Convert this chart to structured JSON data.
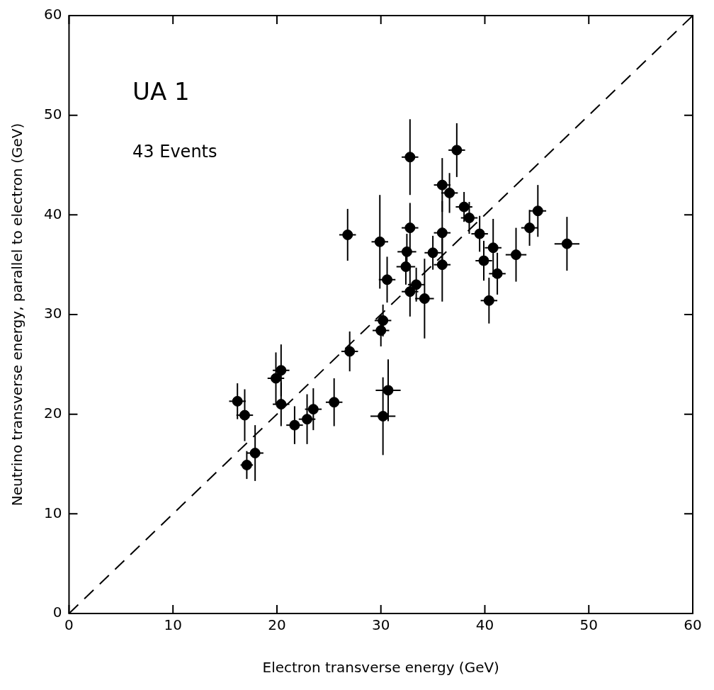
{
  "chart_data": {
    "type": "scatter",
    "xlabel": "Electron transverse energy (GeV)",
    "ylabel": "Neutrino transverse energy, parallel to electron (GeV)",
    "annotations": [
      "UA 1",
      "43 Events"
    ],
    "xlim": [
      0,
      60
    ],
    "xticks": [
      0,
      10,
      20,
      30,
      40,
      50,
      60
    ],
    "ylim": [
      0,
      60
    ],
    "yticks": [
      0,
      10,
      20,
      30,
      40,
      50,
      60
    ],
    "grid": false,
    "legend": false,
    "series": [
      {
        "type": "scatter",
        "color": "#000000",
        "marker": "circle",
        "x": [
          16.2,
          16.9,
          17.1,
          17.9,
          19.9,
          20.4,
          20.4,
          21.7,
          22.9,
          23.5,
          25.5,
          27.0,
          30.0,
          30.2,
          30.2,
          30.7,
          26.8,
          29.9,
          30.6,
          32.8,
          32.8,
          32.5,
          32.4,
          33.4,
          32.8,
          34.2,
          35.0,
          35.9,
          35.9,
          35.9,
          36.6,
          37.3,
          38.0,
          38.5,
          39.5,
          40.8,
          39.9,
          41.2,
          40.4,
          43.0,
          44.3,
          45.1,
          47.9
        ],
        "values": [
          21.3,
          19.9,
          14.9,
          16.1,
          23.6,
          24.4,
          21.0,
          18.9,
          19.5,
          20.5,
          21.2,
          26.3,
          28.4,
          29.4,
          19.8,
          22.4,
          38.0,
          37.3,
          33.5,
          45.8,
          38.7,
          36.3,
          34.8,
          33.0,
          32.3,
          31.6,
          36.2,
          38.2,
          35.0,
          43.0,
          42.2,
          46.5,
          40.8,
          39.7,
          38.1,
          36.7,
          35.4,
          34.1,
          31.4,
          36.0,
          38.7,
          40.4,
          37.1
        ],
        "errors": [
          1.8,
          2.6,
          1.4,
          2.8,
          2.6,
          2.6,
          2.2,
          1.9,
          2.5,
          2.1,
          2.4,
          2.0,
          1.6,
          1.6,
          3.9,
          3.1,
          2.6,
          4.7,
          2.3,
          3.8,
          2.5,
          1.8,
          1.8,
          1.7,
          2.5,
          4.0,
          1.7,
          3.2,
          3.7,
          2.7,
          2.0,
          2.7,
          1.5,
          1.6,
          1.8,
          2.9,
          2.0,
          2.1,
          2.3,
          2.7,
          1.8,
          2.6,
          2.7
        ],
        "xerrors": [
          0.8,
          0.8,
          0.6,
          0.8,
          0.8,
          0.8,
          0.8,
          0.8,
          0.8,
          0.8,
          0.8,
          0.8,
          0.8,
          0.8,
          1.2,
          1.2,
          0.8,
          0.8,
          0.8,
          0.8,
          0.8,
          0.9,
          0.9,
          0.8,
          0.8,
          0.9,
          0.8,
          0.8,
          0.8,
          0.8,
          0.8,
          0.8,
          0.8,
          0.8,
          0.8,
          0.8,
          0.8,
          0.8,
          0.8,
          1.0,
          0.8,
          0.8,
          1.2
        ]
      },
      {
        "type": "line",
        "color": "#000000",
        "line_style": "dashed",
        "marker": "none",
        "x": [
          0,
          60
        ],
        "values": [
          0,
          60
        ]
      }
    ]
  }
}
